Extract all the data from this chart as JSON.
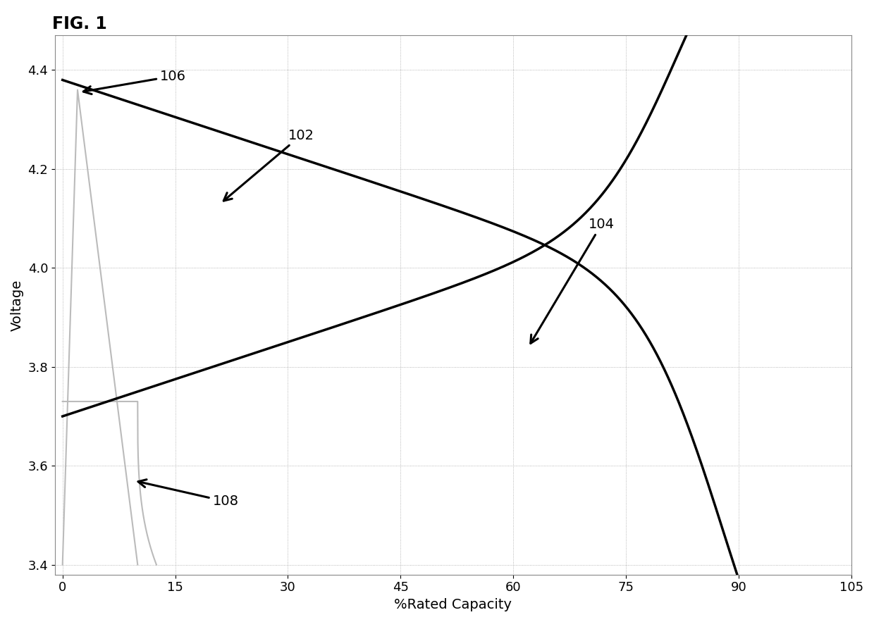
{
  "title": "FIG. 1",
  "xlabel": "%Rated Capacity",
  "ylabel": "Voltage",
  "xlim": [
    -1,
    105
  ],
  "ylim": [
    3.38,
    4.47
  ],
  "xticks": [
    0,
    15,
    30,
    45,
    60,
    75,
    90,
    105
  ],
  "yticks": [
    3.4,
    3.6,
    3.8,
    4.0,
    4.2,
    4.4
  ],
  "line_color": "#000000",
  "curve_gray_color": "#bbbbbb",
  "background_color": "#ffffff",
  "grid_color": "#999999"
}
